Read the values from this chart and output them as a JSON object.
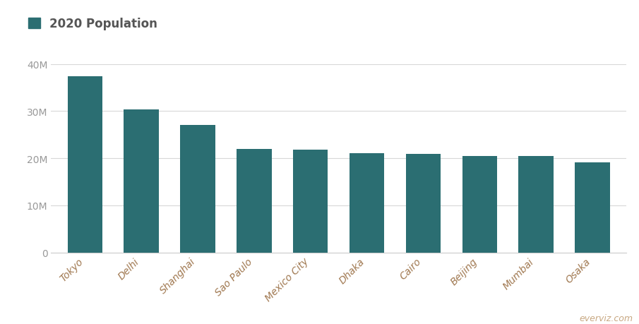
{
  "cities": [
    "Tokyo",
    "Delhi",
    "Shanghai",
    "Sao Paulo",
    "Mexico City",
    "Dhaka",
    "Cairo",
    "Beijing",
    "Mumbai",
    "Osaka"
  ],
  "populations": [
    37400000,
    30290000,
    27058000,
    22043000,
    21782000,
    21006000,
    20901000,
    20462000,
    20411000,
    19165000
  ],
  "bar_color": "#2b6e72",
  "background_color": "#ffffff",
  "grid_color": "#d8d8d8",
  "legend_label": "2020 Population",
  "legend_color": "#2b6e72",
  "ytick_labels": [
    "0",
    "10M",
    "20M",
    "30M",
    "40M"
  ],
  "ytick_values": [
    0,
    10000000,
    20000000,
    30000000,
    40000000
  ],
  "ylim": [
    0,
    42000000
  ],
  "watermark": "everviz.com",
  "watermark_color": "#c8a882",
  "xlabel_color": "#a07850",
  "ylabel_color": "#999999",
  "axis_line_color": "#cccccc",
  "legend_text_color": "#555555",
  "title_fontsize": 12,
  "tick_fontsize": 10,
  "bar_width": 0.62
}
